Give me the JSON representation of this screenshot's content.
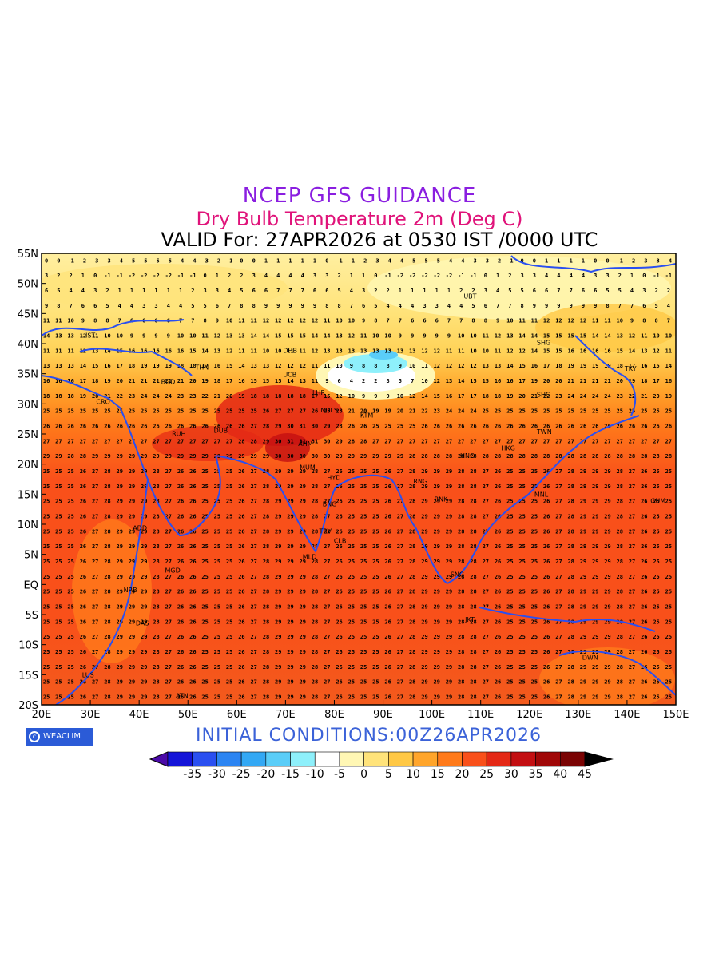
{
  "titles": {
    "line1": "NCEP GFS GUIDANCE",
    "line2": "Dry Bulb Temperature 2m (Deg C)",
    "line3": "VALID For: 27APR2026 at 0530 IST /0000 UTC"
  },
  "initial_conditions": "INITIAL CONDITIONS:00Z26APR2026",
  "logo_text": "WEACLIM",
  "map": {
    "lon_labels": [
      "20E",
      "30E",
      "40E",
      "50E",
      "60E",
      "70E",
      "80E",
      "90E",
      "100E",
      "110E",
      "120E",
      "130E",
      "140E",
      "150E"
    ],
    "lat_labels": [
      "55N",
      "50N",
      "45N",
      "40N",
      "35N",
      "30N",
      "25N",
      "20N",
      "15N",
      "10N",
      "5N",
      "EQ",
      "5S",
      "10S",
      "15S",
      "20S"
    ],
    "cities": [
      {
        "name": "UBT",
        "lon": 106.5,
        "lat": 47.5
      },
      {
        "name": "DHB",
        "lon": 69.5,
        "lat": 38.5
      },
      {
        "name": "SHG",
        "lon": 121.5,
        "lat": 39.8
      },
      {
        "name": "TKY",
        "lon": 139.5,
        "lat": 35.5
      },
      {
        "name": "THN",
        "lon": 51.5,
        "lat": 35.7
      },
      {
        "name": "IST",
        "lon": 29.0,
        "lat": 41.0
      },
      {
        "name": "BGD",
        "lon": 44.5,
        "lat": 33.3
      },
      {
        "name": "UCB",
        "lon": 69.5,
        "lat": 34.5
      },
      {
        "name": "LHR",
        "lon": 75.5,
        "lat": 31.5
      },
      {
        "name": "NDLS",
        "lon": 77.2,
        "lat": 28.6
      },
      {
        "name": "CRO",
        "lon": 31.2,
        "lat": 30.0
      },
      {
        "name": "SHG",
        "lon": 121.5,
        "lat": 31.2
      },
      {
        "name": "KTM",
        "lon": 85.3,
        "lat": 27.7
      },
      {
        "name": "DUB",
        "lon": 55.3,
        "lat": 25.2
      },
      {
        "name": "RUH",
        "lon": 46.7,
        "lat": 24.7
      },
      {
        "name": "TWN",
        "lon": 121.5,
        "lat": 25.0
      },
      {
        "name": "AHM",
        "lon": 72.6,
        "lat": 23.0
      },
      {
        "name": "MUM",
        "lon": 72.9,
        "lat": 19.1
      },
      {
        "name": "HNO",
        "lon": 105.8,
        "lat": 21.0
      },
      {
        "name": "HKG",
        "lon": 114.2,
        "lat": 22.3
      },
      {
        "name": "HYD",
        "lon": 78.5,
        "lat": 17.4
      },
      {
        "name": "RNG",
        "lon": 96.2,
        "lat": 16.8
      },
      {
        "name": "BNK",
        "lon": 100.5,
        "lat": 13.8
      },
      {
        "name": "MNL",
        "lon": 121.0,
        "lat": 14.6
      },
      {
        "name": "BNG",
        "lon": 77.6,
        "lat": 13.0
      },
      {
        "name": "ADD",
        "lon": 38.7,
        "lat": 9.0
      },
      {
        "name": "TRV",
        "lon": 76.9,
        "lat": 8.5
      },
      {
        "name": "CLB",
        "lon": 79.9,
        "lat": 6.9
      },
      {
        "name": "MLD",
        "lon": 73.5,
        "lat": 4.2
      },
      {
        "name": "MGD",
        "lon": 45.3,
        "lat": 2.0
      },
      {
        "name": "NRB",
        "lon": 36.8,
        "lat": -1.3
      },
      {
        "name": "SNG",
        "lon": 103.8,
        "lat": 1.3
      },
      {
        "name": "JKT",
        "lon": 106.8,
        "lat": -6.2
      },
      {
        "name": "DAS",
        "lon": 39.3,
        "lat": -6.8
      },
      {
        "name": "GUM",
        "lon": 144.8,
        "lat": 13.5
      },
      {
        "name": "DWN",
        "lon": 130.8,
        "lat": -12.5
      },
      {
        "name": "LUS",
        "lon": 28.3,
        "lat": -15.4
      },
      {
        "name": "ATN",
        "lon": 47.5,
        "lat": -18.9
      }
    ]
  },
  "colorbar": {
    "colors": [
      "#4b0aa8",
      "#1414d8",
      "#2a4ff0",
      "#2b84f2",
      "#33a8f4",
      "#5acdf8",
      "#8ef0fb",
      "#ffffff",
      "#fff7b4",
      "#ffe37a",
      "#ffc845",
      "#ffa52b",
      "#ff7a1a",
      "#f9501a",
      "#e42815",
      "#c30f12",
      "#a00707",
      "#7a0303",
      "#000000"
    ],
    "labels": [
      "-35",
      "-30",
      "-25",
      "-20",
      "-15",
      "-10",
      "-5",
      "0",
      "5",
      "10",
      "15",
      "20",
      "25",
      "30",
      "35",
      "40",
      "45"
    ]
  }
}
